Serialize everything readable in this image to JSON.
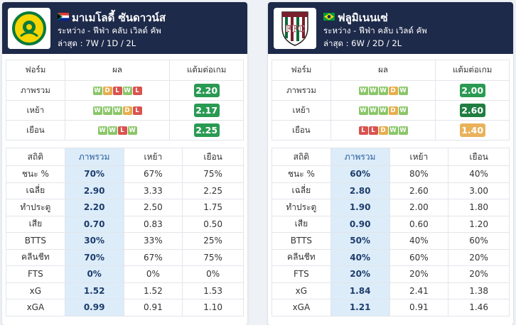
{
  "left": {
    "name": "มาเมโลดี้ ซันดาวน์ส",
    "competition": "ระหว่าง - ฟีฟ่า คลับ เวิลด์ คัพ",
    "recent": "ล่าสุด : 7W / 1D / 2L",
    "flag": "south-africa-flag",
    "logo": "mamelodi-sundowns-logo",
    "form_headers": [
      "ฟอร์ม",
      "ผล",
      "แต้มต่อเกม"
    ],
    "form_rows": [
      {
        "label": "ภาพรวม",
        "results": [
          "W",
          "D",
          "L",
          "W",
          "L"
        ],
        "ppg": "2.20",
        "ppg_color": "#2a9a52"
      },
      {
        "label": "เหย้า",
        "results": [
          "W",
          "W",
          "W",
          "D",
          "L"
        ],
        "ppg": "2.17",
        "ppg_color": "#2a9a52"
      },
      {
        "label": "เยือน",
        "results": [
          "W",
          "W",
          "L",
          "W"
        ],
        "ppg": "2.25",
        "ppg_color": "#2a9a52"
      }
    ],
    "stat_headers": [
      "สถิติ",
      "ภาพรวม",
      "เหย้า",
      "เยือน"
    ],
    "stat_rows": [
      {
        "label": "ชนะ %",
        "overall": "70%",
        "home": "67%",
        "away": "75%"
      },
      {
        "label": "เฉลี่ย",
        "overall": "2.90",
        "home": "3.33",
        "away": "2.25"
      },
      {
        "label": "ทำประตู",
        "overall": "2.20",
        "home": "2.50",
        "away": "1.75"
      },
      {
        "label": "เสีย",
        "overall": "0.70",
        "home": "0.83",
        "away": "0.50"
      },
      {
        "label": "BTTS",
        "overall": "30%",
        "home": "33%",
        "away": "25%"
      },
      {
        "label": "คลีนชีท",
        "overall": "70%",
        "home": "67%",
        "away": "75%"
      },
      {
        "label": "FTS",
        "overall": "0%",
        "home": "0%",
        "away": "0%"
      },
      {
        "label": "xG",
        "overall": "1.52",
        "home": "1.52",
        "away": "1.53"
      },
      {
        "label": "xGA",
        "overall": "0.99",
        "home": "0.91",
        "away": "1.10"
      }
    ]
  },
  "right": {
    "name": "ฟลูมิเนนเซ่",
    "competition": "ระหว่าง - ฟีฟ่า คลับ เวิลด์ คัพ",
    "recent": "ล่าสุด : 6W / 2D / 2L",
    "flag": "brazil-flag",
    "logo": "fluminense-logo",
    "form_headers": [
      "ฟอร์ม",
      "ผล",
      "แต้มต่อเกม"
    ],
    "form_rows": [
      {
        "label": "ภาพรวม",
        "results": [
          "W",
          "W",
          "W",
          "D",
          "W"
        ],
        "ppg": "2.00",
        "ppg_color": "#2a9a52"
      },
      {
        "label": "เหย้า",
        "results": [
          "W",
          "W",
          "W",
          "D",
          "W"
        ],
        "ppg": "2.60",
        "ppg_color": "#1f7d41"
      },
      {
        "label": "เยือน",
        "results": [
          "L",
          "L",
          "D",
          "W",
          "W"
        ],
        "ppg": "1.40",
        "ppg_color": "#e9b25a"
      }
    ],
    "stat_headers": [
      "สถิติ",
      "ภาพรวม",
      "เหย้า",
      "เยือน"
    ],
    "stat_rows": [
      {
        "label": "ชนะ %",
        "overall": "60%",
        "home": "80%",
        "away": "40%"
      },
      {
        "label": "เฉลี่ย",
        "overall": "2.80",
        "home": "2.60",
        "away": "3.00"
      },
      {
        "label": "ทำประตู",
        "overall": "1.90",
        "home": "2.00",
        "away": "1.80"
      },
      {
        "label": "เสีย",
        "overall": "0.90",
        "home": "0.60",
        "away": "1.20"
      },
      {
        "label": "BTTS",
        "overall": "50%",
        "home": "40%",
        "away": "60%"
      },
      {
        "label": "คลีนชีท",
        "overall": "40%",
        "home": "60%",
        "away": "20%"
      },
      {
        "label": "FTS",
        "overall": "20%",
        "home": "20%",
        "away": "20%"
      },
      {
        "label": "xG",
        "overall": "1.84",
        "home": "2.41",
        "away": "1.38"
      },
      {
        "label": "xGA",
        "overall": "1.21",
        "home": "0.91",
        "away": "1.46"
      }
    ]
  }
}
